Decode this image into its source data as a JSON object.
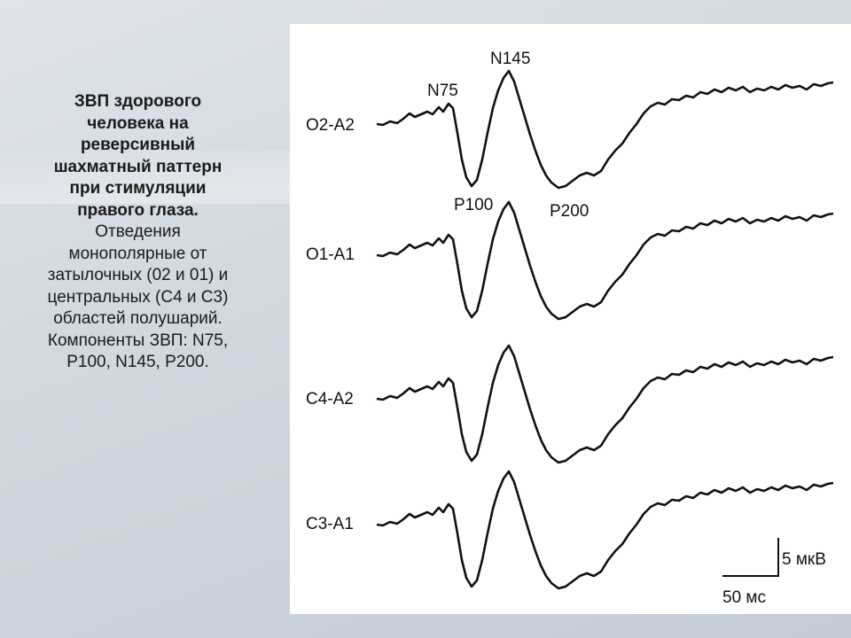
{
  "description": {
    "bold": "ЗВП здорового человека на реверсивный шахматный паттерн при стимуляции правого глаза.",
    "text": "Отведения монополярные от затылочных (02 и 01) и центральных (С4 и С3) областей полушарий. Компоненты ЗВП: N75, P100, N145, P200."
  },
  "figure": {
    "channels": [
      "O2-A2",
      "O1-A1",
      "C4-A2",
      "C3-A1"
    ],
    "components": [
      "N75",
      "N145",
      "P100",
      "P200"
    ],
    "scale": {
      "amplitude": "5 мкВ",
      "time": "50 мс"
    }
  }
}
